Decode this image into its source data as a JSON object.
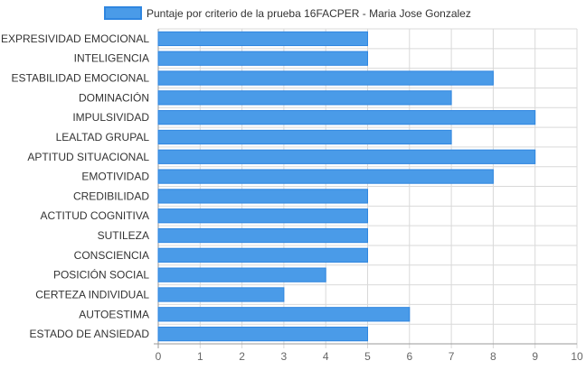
{
  "chart_data": {
    "type": "bar",
    "orientation": "horizontal",
    "series": [
      {
        "name": "Puntaje por criterio de la prueba 16FACPER - Maria Jose Gonzalez",
        "values": [
          5,
          5,
          8,
          7,
          9,
          7,
          9,
          8,
          5,
          5,
          5,
          5,
          4,
          3,
          6,
          5
        ]
      }
    ],
    "categories": [
      "EXPRESIVIDAD EMOCIONAL",
      "INTELIGENCIA",
      "ESTABILIDAD EMOCIONAL",
      "DOMINACIÓN",
      "IMPULSIVIDAD",
      "LEALTAD GRUPAL",
      "APTITUD SITUACIONAL",
      "EMOTIVIDAD",
      "CREDIBILIDAD",
      "ACTITUD COGNITIVA",
      "SUTILEZA",
      "CONSCIENCIA",
      "POSICIÓN SOCIAL",
      "CERTEZA INDIVIDUAL",
      "AUTOESTIMA",
      "ESTADO DE ANSIEDAD"
    ],
    "xticks": [
      "0",
      "1",
      "2",
      "3",
      "4",
      "5",
      "6",
      "7",
      "8",
      "9",
      "10"
    ],
    "xlim": [
      0,
      10
    ],
    "grid": true,
    "legend": "top-center",
    "colors": {
      "bar_fill": "#4a9be8",
      "bar_stroke": "#2f86e0",
      "grid": "#d9d9d9",
      "axis": "#999999"
    }
  }
}
